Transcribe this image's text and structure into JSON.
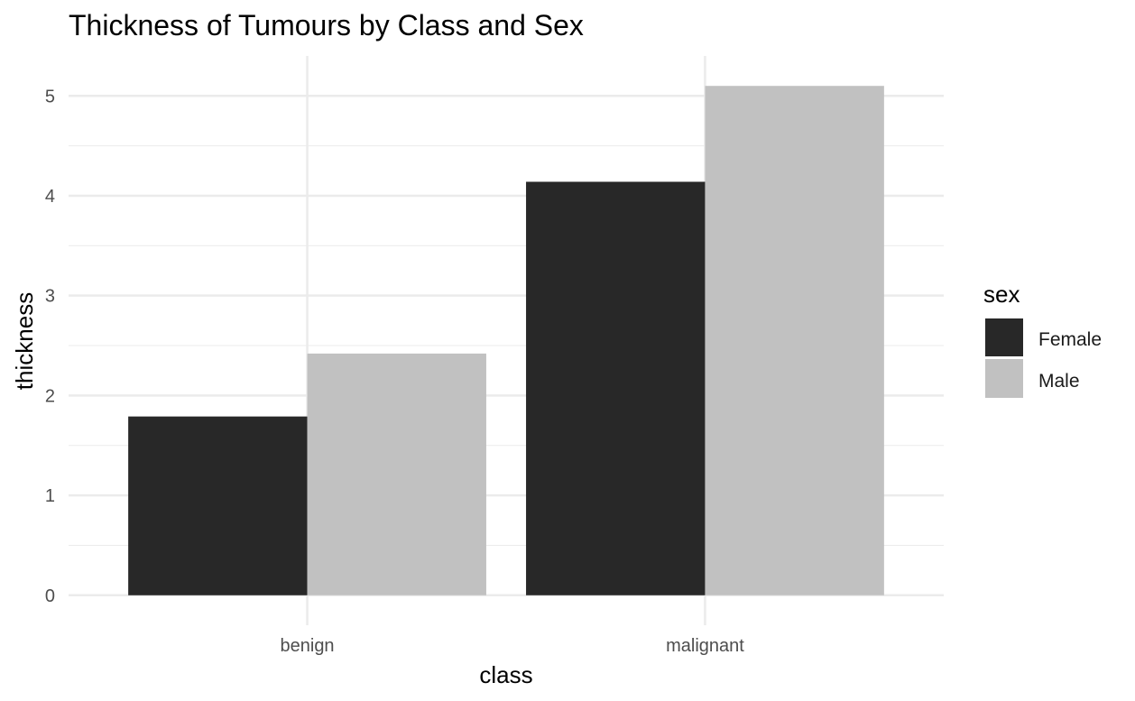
{
  "chart_data": {
    "type": "bar",
    "title": "Thickness of Tumours by Class and Sex",
    "xlabel": "class",
    "ylabel": "thickness",
    "categories": [
      "benign",
      "malignant"
    ],
    "series": [
      {
        "name": "Female",
        "values": [
          1.79,
          4.14
        ],
        "color": "#282828"
      },
      {
        "name": "Male",
        "values": [
          2.42,
          5.1
        ],
        "color": "#c1c1c1"
      }
    ],
    "ylim": [
      -0.3,
      5.4
    ],
    "yticks": [
      "0",
      "1",
      "2",
      "3",
      "4",
      "5"
    ],
    "grid": true,
    "legend": {
      "title": "sex",
      "position": "right"
    },
    "colors": {
      "gridline": "#ebebeb",
      "background": "#ffffff"
    }
  }
}
